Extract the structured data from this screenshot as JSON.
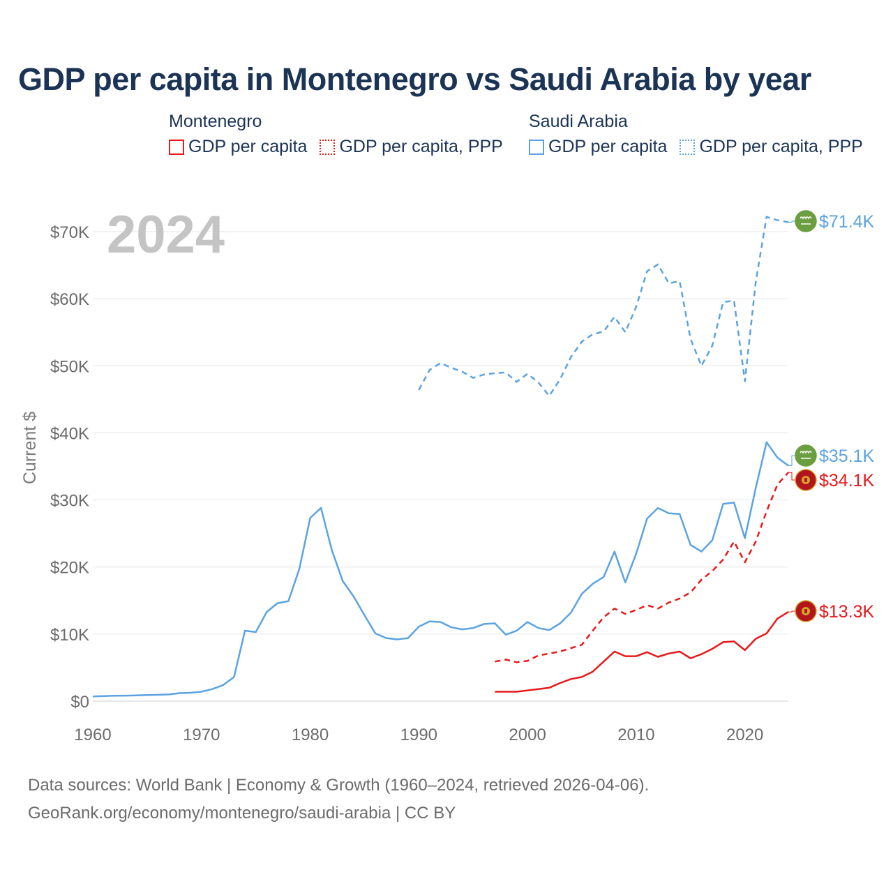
{
  "title": "GDP per capita in Montenegro vs Saudi Arabia by year",
  "legend": {
    "groups": [
      {
        "name": "Montenegro",
        "color": "#e8191a",
        "items": [
          {
            "label": "GDP per capita",
            "style": "solid"
          },
          {
            "label": "GDP per capita, PPP",
            "style": "dotted"
          }
        ]
      },
      {
        "name": "Saudi Arabia",
        "color": "#5ba3e0",
        "items": [
          {
            "label": "GDP per capita",
            "style": "solid"
          },
          {
            "label": "GDP per capita, PPP",
            "style": "dotted"
          }
        ]
      }
    ]
  },
  "year_watermark": "2024",
  "source": {
    "line1": "Data sources: World Bank | Economy & Growth (1960–2024, retrieved 2026-04-06).",
    "line2": "GeoRank.org/economy/montenegro/saudi-arabia | CC BY"
  },
  "chart_data": {
    "type": "line",
    "title": "GDP per capita in Montenegro vs Saudi Arabia by year",
    "xlabel": "",
    "ylabel": "Current $",
    "xlim": [
      1960,
      2024
    ],
    "ylim": [
      0,
      70000
    ],
    "x_ticks": [
      1960,
      1970,
      1980,
      1990,
      2000,
      2010,
      2020
    ],
    "x_tick_labels": [
      "1960",
      "1970",
      "1980",
      "1990",
      "2000",
      "2010",
      "2020"
    ],
    "y_ticks": [
      0,
      10000,
      20000,
      30000,
      40000,
      50000,
      60000,
      70000
    ],
    "y_tick_labels": [
      "$0",
      "$10K",
      "$20K",
      "$30K",
      "$40K",
      "$50K",
      "$60K",
      "$70K"
    ],
    "grid": true,
    "series": [
      {
        "name": "Saudi Arabia GDP per capita, PPP",
        "color": "#5ba3e0",
        "dash": "dashed",
        "end_label": "$71.4K",
        "start_year": 1990,
        "values": [
          46400,
          49400,
          50400,
          49700,
          49100,
          48200,
          48700,
          48900,
          49000,
          47600,
          48800,
          47500,
          45500,
          48000,
          51300,
          53600,
          54700,
          55100,
          57300,
          55000,
          58800,
          64100,
          65100,
          62300,
          62600,
          54000,
          50000,
          53000,
          59500,
          59700,
          47700,
          62500,
          72200,
          71700,
          71400
        ]
      },
      {
        "name": "Saudi Arabia GDP per capita",
        "color": "#5ba3e0",
        "dash": "solid",
        "end_label": "$35.1K",
        "start_year": 1960,
        "values": [
          700,
          750,
          800,
          820,
          850,
          900,
          950,
          1000,
          1200,
          1250,
          1400,
          1800,
          2400,
          3600,
          10500,
          10300,
          13300,
          14600,
          14900,
          19700,
          27300,
          28800,
          22500,
          17900,
          15600,
          12800,
          10100,
          9400,
          9200,
          9400,
          11100,
          11900,
          11800,
          11000,
          10700,
          10900,
          11500,
          11600,
          9900,
          10500,
          11800,
          10900,
          10600,
          11600,
          13200,
          16000,
          17500,
          18500,
          22300,
          17700,
          22000,
          27200,
          28800,
          28000,
          27900,
          23300,
          22300,
          24000,
          29400,
          29600,
          24300,
          31800,
          38600,
          36300,
          35100
        ]
      },
      {
        "name": "Montenegro GDP per capita, PPP",
        "color": "#e8191a",
        "dash": "dashed",
        "end_label": "$34.1K",
        "start_year": 1997,
        "values": [
          5900,
          6200,
          5800,
          6000,
          6800,
          7100,
          7400,
          7900,
          8400,
          10500,
          12500,
          13800,
          13000,
          13600,
          14300,
          13800,
          14700,
          15300,
          16200,
          18100,
          19400,
          21100,
          23800,
          20700,
          23800,
          28300,
          32300,
          34100
        ]
      },
      {
        "name": "Montenegro GDP per capita",
        "color": "#e8191a",
        "dash": "solid",
        "end_label": "$13.3K",
        "start_year": 1997,
        "values": [
          1400,
          1400,
          1400,
          1600,
          1800,
          2000,
          2700,
          3300,
          3600,
          4400,
          5900,
          7400,
          6700,
          6700,
          7300,
          6600,
          7100,
          7400,
          6400,
          7000,
          7800,
          8800,
          8900,
          7600,
          9300,
          10100,
          12300,
          13300
        ]
      }
    ]
  }
}
